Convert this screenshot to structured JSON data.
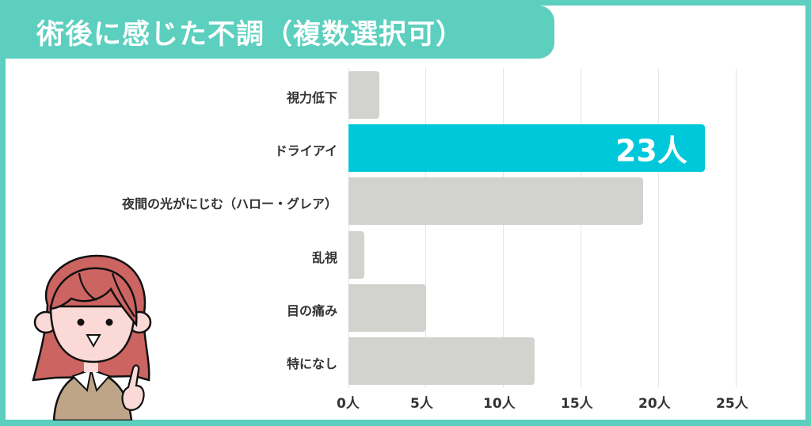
{
  "title": "術後に感じた不調（複数選択可）",
  "colors": {
    "frame": "#5ccfbf",
    "highlight_bar": "#00c8db",
    "default_bar": "#d2d3cf",
    "gridline": "#e6e6e6",
    "text": "#333333"
  },
  "bars": [
    {
      "label": "視力低下",
      "value": 2,
      "highlight": false,
      "value_label": ""
    },
    {
      "label": "ドライアイ",
      "value": 23,
      "highlight": true,
      "value_label": "23人"
    },
    {
      "label": "夜間の光がにじむ（ハロー・グレア）",
      "value": 19,
      "highlight": false,
      "value_label": ""
    },
    {
      "label": "乱視",
      "value": 1,
      "highlight": false,
      "value_label": ""
    },
    {
      "label": "目の痛み",
      "value": 5,
      "highlight": false,
      "value_label": ""
    },
    {
      "label": "特になし",
      "value": 12,
      "highlight": false,
      "value_label": ""
    }
  ],
  "x_axis": {
    "ticks": [
      "0人",
      "5人",
      "10人",
      "15人",
      "20人",
      "25人"
    ]
  },
  "illustration": "woman-pointing-icon",
  "chart_data": {
    "type": "bar",
    "orientation": "horizontal",
    "title": "術後に感じた不調（複数選択可）",
    "categories": [
      "視力低下",
      "ドライアイ",
      "夜間の光がにじむ（ハロー・グレア）",
      "乱視",
      "目の痛み",
      "特になし"
    ],
    "values": [
      2,
      23,
      19,
      1,
      5,
      12
    ],
    "xlabel": "",
    "ylabel": "",
    "xlim": [
      0,
      25
    ],
    "x_ticks": [
      "0人",
      "5人",
      "10人",
      "15人",
      "20人",
      "25人"
    ],
    "unit": "人",
    "grid": true,
    "annotations": [
      {
        "category": "ドライアイ",
        "text": "23人"
      }
    ],
    "highlight": "ドライアイ"
  }
}
